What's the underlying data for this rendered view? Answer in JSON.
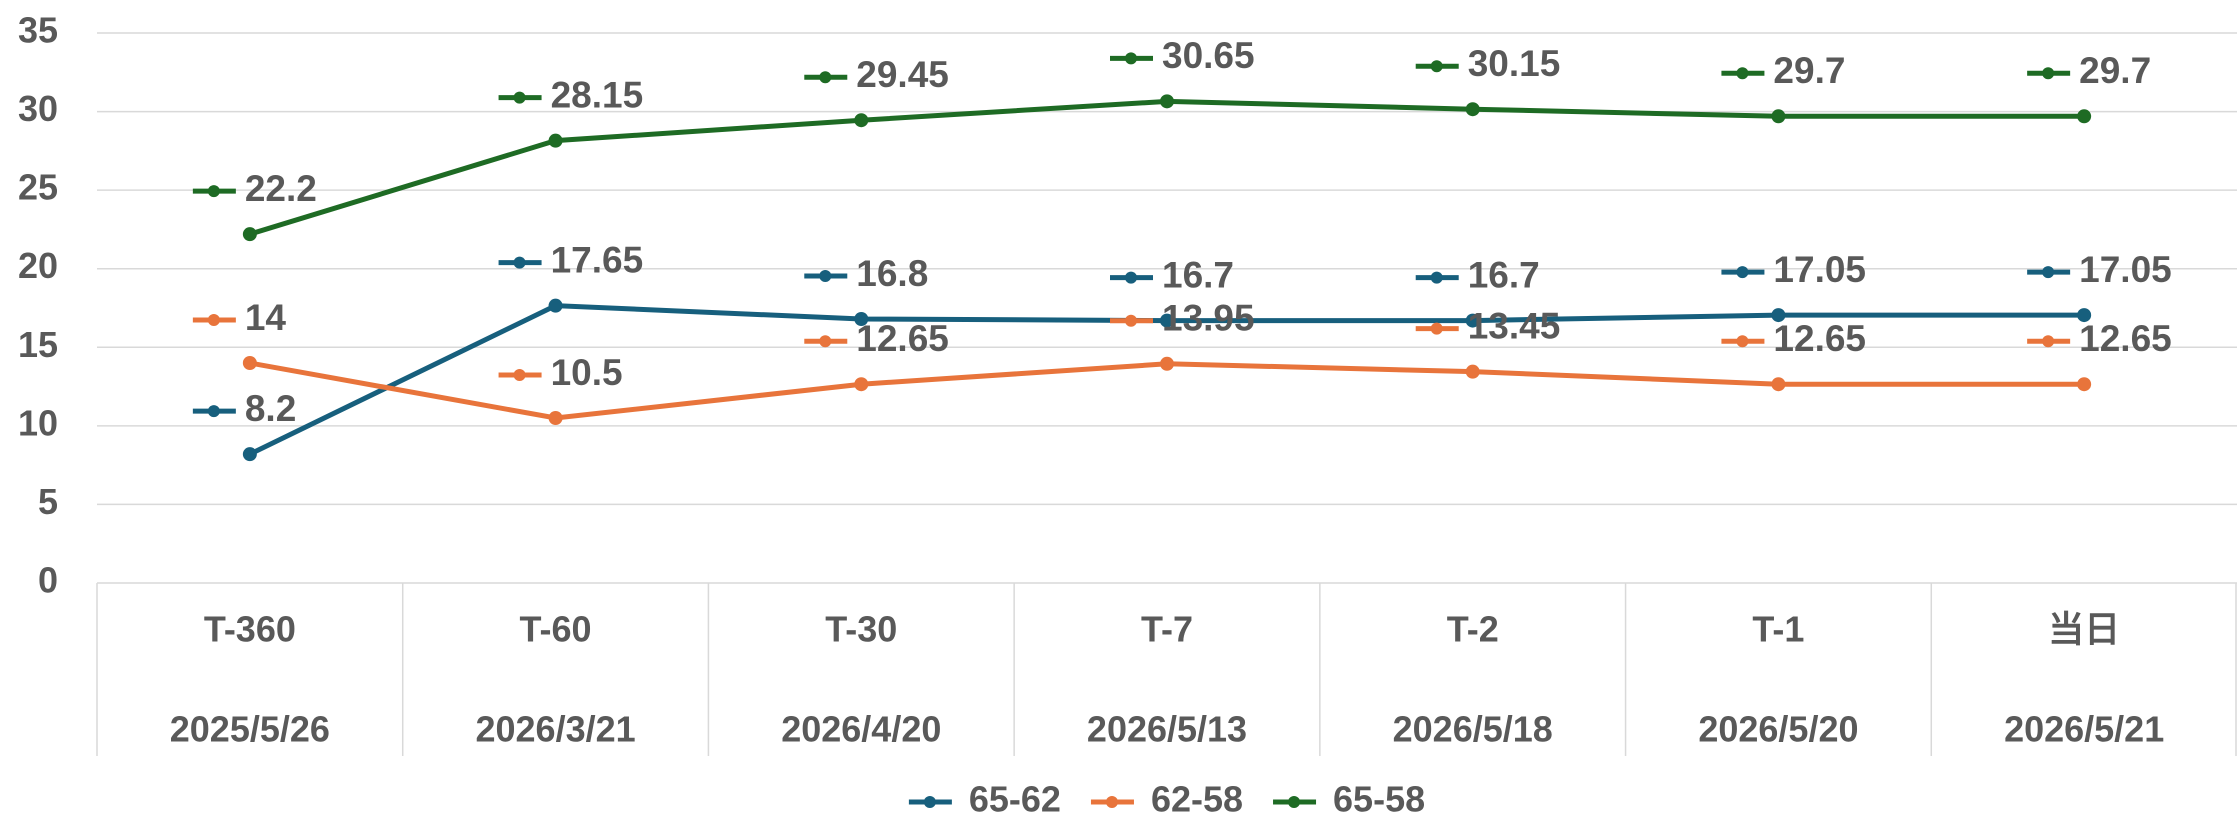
{
  "chart_data": {
    "type": "line",
    "categories": [
      "T-360",
      "T-60",
      "T-30",
      "T-7",
      "T-2",
      "T-1",
      "当日"
    ],
    "category_dates": [
      "2025/5/26",
      "2026/3/21",
      "2026/4/20",
      "2026/5/13",
      "2026/5/18",
      "2026/5/20",
      "2026/5/21"
    ],
    "series": [
      {
        "name": "65-62",
        "color": "#175f7d",
        "values": [
          8.2,
          17.65,
          16.8,
          16.7,
          16.7,
          17.05,
          17.05
        ]
      },
      {
        "name": "62-58",
        "color": "#e8743b",
        "values": [
          14,
          10.5,
          12.65,
          13.95,
          13.45,
          12.65,
          12.65
        ]
      },
      {
        "name": "65-58",
        "color": "#1e6b24",
        "values": [
          22.2,
          28.15,
          29.45,
          30.65,
          30.15,
          29.7,
          29.7
        ]
      }
    ],
    "ylim": [
      0,
      35
    ],
    "yticks": [
      0,
      5,
      10,
      15,
      20,
      25,
      30,
      35
    ],
    "grid": true,
    "legend": "bottom"
  }
}
